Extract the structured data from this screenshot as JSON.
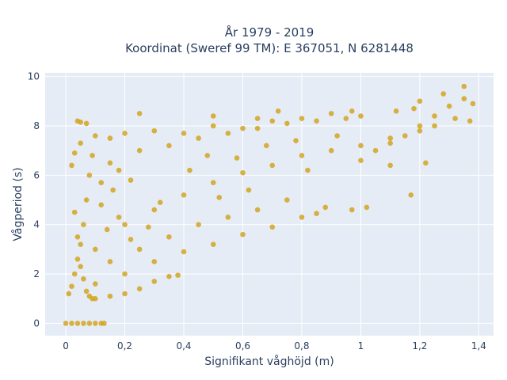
{
  "chart_data": {
    "type": "scatter",
    "title_line1": "År 1979 - 2019",
    "title_line2": "Koordinat (Sweref 99 TM): E 367051, N 6281448",
    "xlabel": "Signifikant våghöjd (m)",
    "ylabel": "Vågperiod (s)",
    "xlim": [
      -0.07,
      1.45
    ],
    "ylim": [
      -0.5,
      10.15
    ],
    "xticks": [
      0,
      0.2,
      0.4,
      0.6,
      0.8,
      1,
      1.2,
      1.4
    ],
    "xtick_labels": [
      "0",
      "0,2",
      "0,4",
      "0,6",
      "0,8",
      "1",
      "1,2",
      "1,4"
    ],
    "yticks": [
      0,
      2,
      4,
      6,
      8,
      10
    ],
    "ytick_labels": [
      "0",
      "2",
      "4",
      "6",
      "8",
      "10"
    ],
    "grid": true,
    "marker_color": "#D4A421",
    "plot_background": "#E5ECF6",
    "series": [
      {
        "points": [
          [
            0.0,
            0.0
          ],
          [
            0.02,
            0.0
          ],
          [
            0.04,
            0.0
          ],
          [
            0.06,
            0.0
          ],
          [
            0.08,
            0.0
          ],
          [
            0.1,
            0.0
          ],
          [
            0.12,
            0.0
          ],
          [
            0.13,
            0.0
          ],
          [
            0.01,
            1.2
          ],
          [
            0.02,
            1.5
          ],
          [
            0.03,
            2.0
          ],
          [
            0.04,
            2.6
          ],
          [
            0.05,
            3.2
          ],
          [
            0.06,
            4.0
          ],
          [
            0.07,
            5.0
          ],
          [
            0.08,
            6.0
          ],
          [
            0.04,
            8.2
          ],
          [
            0.05,
            8.15
          ],
          [
            0.07,
            8.1
          ],
          [
            0.1,
            7.6
          ],
          [
            0.15,
            7.5
          ],
          [
            0.2,
            7.7
          ],
          [
            0.25,
            8.5
          ],
          [
            0.02,
            6.4
          ],
          [
            0.03,
            6.9
          ],
          [
            0.05,
            7.3
          ],
          [
            0.09,
            6.8
          ],
          [
            0.12,
            5.7
          ],
          [
            0.18,
            6.2
          ],
          [
            0.22,
            5.8
          ],
          [
            0.1,
            1.0
          ],
          [
            0.15,
            1.1
          ],
          [
            0.2,
            1.2
          ],
          [
            0.25,
            1.4
          ],
          [
            0.3,
            1.7
          ],
          [
            0.35,
            1.9
          ],
          [
            0.38,
            1.95
          ],
          [
            0.1,
            1.6
          ],
          [
            0.2,
            2.0
          ],
          [
            0.3,
            2.5
          ],
          [
            0.4,
            2.9
          ],
          [
            0.5,
            3.2
          ],
          [
            0.6,
            3.6
          ],
          [
            0.7,
            3.9
          ],
          [
            0.8,
            4.3
          ],
          [
            0.85,
            4.45
          ],
          [
            0.15,
            2.5
          ],
          [
            0.25,
            3.0
          ],
          [
            0.35,
            3.5
          ],
          [
            0.45,
            4.0
          ],
          [
            0.55,
            4.3
          ],
          [
            0.65,
            4.6
          ],
          [
            0.75,
            5.0
          ],
          [
            0.1,
            3.0
          ],
          [
            0.2,
            4.0
          ],
          [
            0.3,
            4.6
          ],
          [
            0.4,
            5.2
          ],
          [
            0.5,
            5.7
          ],
          [
            0.6,
            6.1
          ],
          [
            0.7,
            6.4
          ],
          [
            0.8,
            6.8
          ],
          [
            0.9,
            7.0
          ],
          [
            1.0,
            7.2
          ],
          [
            1.1,
            7.5
          ],
          [
            1.2,
            7.8
          ],
          [
            0.15,
            6.5
          ],
          [
            0.25,
            7.0
          ],
          [
            0.35,
            7.2
          ],
          [
            0.45,
            7.5
          ],
          [
            0.55,
            7.7
          ],
          [
            0.65,
            7.9
          ],
          [
            0.75,
            8.1
          ],
          [
            0.85,
            8.2
          ],
          [
            0.95,
            8.3
          ],
          [
            0.3,
            7.8
          ],
          [
            0.4,
            7.7
          ],
          [
            0.5,
            8.0
          ],
          [
            0.6,
            7.9
          ],
          [
            0.7,
            8.2
          ],
          [
            0.8,
            8.3
          ],
          [
            0.9,
            8.5
          ],
          [
            1.0,
            8.4
          ],
          [
            1.05,
            7.0
          ],
          [
            1.1,
            7.3
          ],
          [
            1.15,
            7.6
          ],
          [
            1.2,
            8.0
          ],
          [
            1.25,
            8.4
          ],
          [
            1.3,
            8.8
          ],
          [
            1.35,
            9.1
          ],
          [
            1.38,
            8.9
          ],
          [
            1.2,
            9.0
          ],
          [
            1.28,
            9.3
          ],
          [
            1.35,
            9.6
          ],
          [
            1.37,
            8.2
          ],
          [
            1.32,
            8.3
          ],
          [
            1.25,
            8.0
          ],
          [
            0.88,
            4.7
          ],
          [
            0.97,
            4.6
          ],
          [
            1.02,
            4.7
          ],
          [
            1.17,
            5.2
          ],
          [
            1.22,
            6.5
          ],
          [
            1.1,
            6.4
          ],
          [
            1.0,
            6.6
          ],
          [
            0.5,
            8.4
          ],
          [
            0.65,
            8.3
          ],
          [
            0.72,
            8.6
          ],
          [
            0.97,
            8.6
          ],
          [
            1.12,
            8.6
          ],
          [
            1.18,
            8.7
          ],
          [
            0.03,
            4.5
          ],
          [
            0.04,
            3.5
          ],
          [
            0.05,
            2.3
          ],
          [
            0.06,
            1.8
          ],
          [
            0.07,
            1.3
          ],
          [
            0.08,
            1.1
          ],
          [
            0.09,
            1.0
          ],
          [
            0.12,
            4.8
          ],
          [
            0.14,
            3.8
          ],
          [
            0.16,
            5.4
          ],
          [
            0.18,
            4.3
          ],
          [
            0.22,
            3.4
          ],
          [
            0.28,
            3.9
          ],
          [
            0.32,
            4.9
          ],
          [
            0.42,
            6.2
          ],
          [
            0.48,
            6.8
          ],
          [
            0.52,
            5.1
          ],
          [
            0.58,
            6.7
          ],
          [
            0.62,
            5.4
          ],
          [
            0.68,
            7.2
          ],
          [
            0.78,
            7.4
          ],
          [
            0.82,
            6.2
          ],
          [
            0.92,
            7.6
          ]
        ]
      }
    ]
  }
}
